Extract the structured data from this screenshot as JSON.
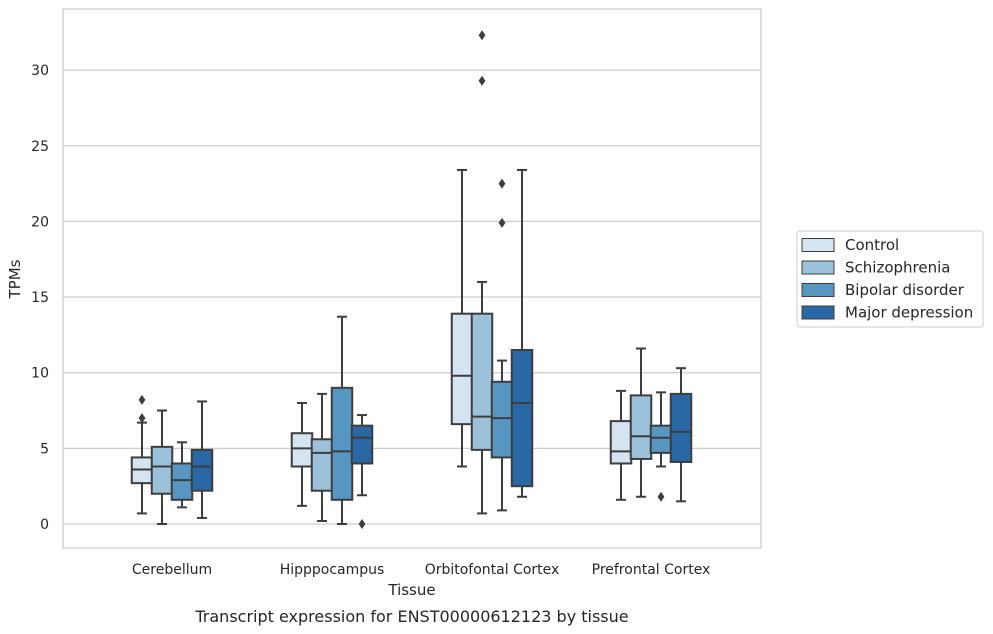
{
  "chart_data": {
    "type": "box",
    "caption": "Transcript expression for ENST00000612123 by tissue",
    "xlabel": "Tissue",
    "ylabel": "TPMs",
    "ylim": [
      -1.6,
      34
    ],
    "yticks": [
      0,
      5,
      10,
      15,
      20,
      25,
      30
    ],
    "grid": true,
    "legend_position": "right",
    "categories": [
      "Cerebellum",
      "Hipppocampus",
      "Orbitofontal Cortex",
      "Prefrontal Cortex"
    ],
    "series": [
      {
        "name": "Control",
        "color": "#d6e4f1",
        "boxes": [
          {
            "whislo": 0.7,
            "q1": 2.7,
            "med": 3.6,
            "q3": 4.4,
            "whishi": 6.7,
            "fliers": [
              7.0,
              8.2
            ]
          },
          {
            "whislo": 1.2,
            "q1": 3.8,
            "med": 5.0,
            "q3": 6.0,
            "whishi": 8.0,
            "fliers": []
          },
          {
            "whislo": 3.8,
            "q1": 6.6,
            "med": 9.8,
            "q3": 13.9,
            "whishi": 23.4,
            "fliers": []
          },
          {
            "whislo": 1.6,
            "q1": 4.0,
            "med": 4.8,
            "q3": 6.8,
            "whishi": 8.8,
            "fliers": []
          }
        ]
      },
      {
        "name": "Schizophrenia",
        "color": "#9bc2da",
        "boxes": [
          {
            "whislo": 0.0,
            "q1": 2.0,
            "med": 3.8,
            "q3": 5.1,
            "whishi": 7.5,
            "fliers": []
          },
          {
            "whislo": 0.2,
            "q1": 2.2,
            "med": 4.7,
            "q3": 5.6,
            "whishi": 8.6,
            "fliers": []
          },
          {
            "whislo": 0.7,
            "q1": 4.9,
            "med": 7.1,
            "q3": 13.9,
            "whishi": 16.0,
            "fliers": [
              29.3,
              32.3
            ]
          },
          {
            "whislo": 1.8,
            "q1": 4.3,
            "med": 5.8,
            "q3": 8.5,
            "whishi": 11.6,
            "fliers": []
          }
        ]
      },
      {
        "name": "Bipolar disorder",
        "color": "#5896c2",
        "boxes": [
          {
            "whislo": 1.1,
            "q1": 1.6,
            "med": 2.9,
            "q3": 4.0,
            "whishi": 5.4,
            "fliers": []
          },
          {
            "whislo": 0.0,
            "q1": 1.6,
            "med": 4.8,
            "q3": 9.0,
            "whishi": 13.7,
            "fliers": []
          },
          {
            "whislo": 0.9,
            "q1": 4.4,
            "med": 7.0,
            "q3": 9.4,
            "whishi": 10.8,
            "fliers": [
              19.9,
              22.5
            ]
          },
          {
            "whislo": 3.8,
            "q1": 4.7,
            "med": 5.7,
            "q3": 6.5,
            "whishi": 8.7,
            "fliers": [
              1.8
            ]
          }
        ]
      },
      {
        "name": "Major depression",
        "color": "#2a67a5",
        "boxes": [
          {
            "whislo": 0.4,
            "q1": 2.2,
            "med": 3.8,
            "q3": 4.9,
            "whishi": 8.1,
            "fliers": []
          },
          {
            "whislo": 1.9,
            "q1": 4.0,
            "med": 5.7,
            "q3": 6.5,
            "whishi": 7.2,
            "fliers": [
              0.0
            ]
          },
          {
            "whislo": 1.8,
            "q1": 2.5,
            "med": 8.0,
            "q3": 11.5,
            "whishi": 23.4,
            "fliers": []
          },
          {
            "whislo": 1.5,
            "q1": 4.1,
            "med": 6.1,
            "q3": 8.6,
            "whishi": 10.3,
            "fliers": []
          }
        ]
      }
    ]
  }
}
